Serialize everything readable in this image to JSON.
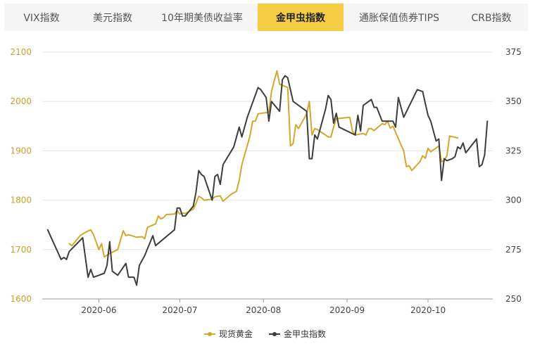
{
  "tabs": [
    {
      "label": "VIX指数",
      "active": false
    },
    {
      "label": "美元指数",
      "active": false
    },
    {
      "label": "10年期美债收益率",
      "active": false
    },
    {
      "label": "金甲虫指数",
      "active": true
    },
    {
      "label": "通胀保值债券TIPS",
      "active": false
    },
    {
      "label": "CRB指数",
      "active": false
    }
  ],
  "colors": {
    "accent": "#f5cd45",
    "gold_line": "#d4a72c",
    "bugs_line": "#3d3d3d"
  },
  "chart_data": {
    "type": "line",
    "x_ticks": [
      "2020-06",
      "2020-07",
      "2020-08",
      "2020-09",
      "2020-10"
    ],
    "y_left": {
      "ticks": [
        "1600",
        "1700",
        "1800",
        "1900",
        "2000",
        "2100"
      ],
      "range": [
        1600,
        2100
      ]
    },
    "y_right": {
      "ticks": [
        "250",
        "275",
        "300",
        "325",
        "350",
        "375"
      ],
      "range": [
        250,
        375
      ]
    },
    "grid": true,
    "legend_position": "bottom",
    "series": [
      {
        "name": "现货黄金",
        "axis": "left",
        "color": "#d4a72c",
        "points": [
          [
            "2020-05-21",
            1712
          ],
          [
            "2020-05-22",
            1708
          ],
          [
            "2020-05-25",
            1728
          ],
          [
            "2020-05-27",
            1735
          ],
          [
            "2020-05-29",
            1740
          ],
          [
            "2020-05-30",
            1730
          ],
          [
            "2020-06-01",
            1700
          ],
          [
            "2020-06-02",
            1712
          ],
          [
            "2020-06-03",
            1685
          ],
          [
            "2020-06-05",
            1692
          ],
          [
            "2020-06-08",
            1700
          ],
          [
            "2020-06-10",
            1738
          ],
          [
            "2020-06-11",
            1728
          ],
          [
            "2020-06-12",
            1730
          ],
          [
            "2020-06-15",
            1725
          ],
          [
            "2020-06-17",
            1726
          ],
          [
            "2020-06-18",
            1722
          ],
          [
            "2020-06-19",
            1745
          ],
          [
            "2020-06-22",
            1752
          ],
          [
            "2020-06-23",
            1768
          ],
          [
            "2020-06-24",
            1762
          ],
          [
            "2020-06-25",
            1765
          ],
          [
            "2020-06-26",
            1771
          ],
          [
            "2020-06-29",
            1772
          ],
          [
            "2020-06-30",
            1779
          ],
          [
            "2020-07-01",
            1772
          ],
          [
            "2020-07-02",
            1774
          ],
          [
            "2020-07-03",
            1773
          ],
          [
            "2020-07-06",
            1782
          ],
          [
            "2020-07-07",
            1793
          ],
          [
            "2020-07-08",
            1808
          ],
          [
            "2020-07-09",
            1805
          ],
          [
            "2020-07-10",
            1800
          ],
          [
            "2020-07-13",
            1802
          ],
          [
            "2020-07-14",
            1807
          ],
          [
            "2020-07-15",
            1808
          ],
          [
            "2020-07-16",
            1809
          ],
          [
            "2020-07-17",
            1798
          ],
          [
            "2020-07-20",
            1812
          ],
          [
            "2020-07-21",
            1815
          ],
          [
            "2020-07-22",
            1818
          ],
          [
            "2020-07-23",
            1840
          ],
          [
            "2020-07-24",
            1872
          ],
          [
            "2020-07-27",
            1930
          ],
          [
            "2020-07-28",
            1960
          ],
          [
            "2020-07-29",
            1960
          ],
          [
            "2020-07-30",
            1975
          ],
          [
            "2020-08-03",
            1978
          ],
          [
            "2020-08-04",
            2020
          ],
          [
            "2020-08-05",
            2042
          ],
          [
            "2020-08-06",
            2062
          ],
          [
            "2020-08-07",
            2035
          ],
          [
            "2020-08-10",
            2028
          ],
          [
            "2020-08-11",
            1910
          ],
          [
            "2020-08-12",
            1915
          ],
          [
            "2020-08-13",
            1953
          ],
          [
            "2020-08-14",
            1945
          ],
          [
            "2020-08-17",
            1975
          ],
          [
            "2020-08-18",
            2000
          ],
          [
            "2020-08-19",
            1932
          ],
          [
            "2020-08-20",
            1945
          ],
          [
            "2020-08-21",
            1943
          ],
          [
            "2020-08-24",
            1932
          ],
          [
            "2020-08-25",
            1928
          ],
          [
            "2020-08-26",
            1928
          ],
          [
            "2020-08-27",
            1948
          ],
          [
            "2020-08-28",
            1965
          ],
          [
            "2020-09-02",
            1968
          ],
          [
            "2020-09-03",
            1940
          ],
          [
            "2020-09-04",
            1932
          ],
          [
            "2020-09-07",
            1935
          ],
          [
            "2020-09-08",
            1932
          ],
          [
            "2020-09-09",
            1945
          ],
          [
            "2020-09-10",
            1945
          ],
          [
            "2020-09-11",
            1941
          ],
          [
            "2020-09-14",
            1955
          ],
          [
            "2020-09-15",
            1953
          ],
          [
            "2020-09-16",
            1960
          ],
          [
            "2020-09-17",
            1946
          ],
          [
            "2020-09-18",
            1950
          ],
          [
            "2020-09-21",
            1912
          ],
          [
            "2020-09-22",
            1900
          ],
          [
            "2020-09-23",
            1868
          ],
          [
            "2020-09-24",
            1870
          ],
          [
            "2020-09-25",
            1860
          ],
          [
            "2020-09-28",
            1878
          ],
          [
            "2020-09-29",
            1890
          ],
          [
            "2020-09-30",
            1885
          ],
          [
            "2020-10-01",
            1905
          ],
          [
            "2020-10-02",
            1898
          ],
          [
            "2020-10-05",
            1910
          ],
          [
            "2020-10-06",
            1878
          ],
          [
            "2020-10-07",
            1880
          ],
          [
            "2020-10-08",
            1890
          ],
          [
            "2020-10-09",
            1930
          ],
          [
            "2020-10-12",
            1926
          ]
        ]
      },
      {
        "name": "金甲虫指数",
        "axis": "right",
        "color": "#3d3d3d",
        "points": [
          [
            "2020-05-13",
            285
          ],
          [
            "2020-05-18",
            270
          ],
          [
            "2020-05-19",
            271
          ],
          [
            "2020-05-20",
            270
          ],
          [
            "2020-05-21",
            274
          ],
          [
            "2020-05-26",
            281
          ],
          [
            "2020-05-28",
            261
          ],
          [
            "2020-05-29",
            265
          ],
          [
            "2020-05-30",
            261
          ],
          [
            "2020-06-01",
            262
          ],
          [
            "2020-06-03",
            263
          ],
          [
            "2020-06-04",
            267
          ],
          [
            "2020-06-05",
            279
          ],
          [
            "2020-06-06",
            264
          ],
          [
            "2020-06-08",
            262
          ],
          [
            "2020-06-11",
            268
          ],
          [
            "2020-06-12",
            261
          ],
          [
            "2020-06-14",
            261
          ],
          [
            "2020-06-15",
            257
          ],
          [
            "2020-06-16",
            267
          ],
          [
            "2020-06-18",
            272
          ],
          [
            "2020-06-21",
            282
          ],
          [
            "2020-06-22",
            277
          ],
          [
            "2020-06-29",
            285
          ],
          [
            "2020-06-30",
            296
          ],
          [
            "2020-07-01",
            296
          ],
          [
            "2020-07-02",
            292
          ],
          [
            "2020-07-03",
            292
          ],
          [
            "2020-07-06",
            297
          ],
          [
            "2020-07-07",
            304
          ],
          [
            "2020-07-08",
            315
          ],
          [
            "2020-07-09",
            313
          ],
          [
            "2020-07-10",
            312
          ],
          [
            "2020-07-13",
            300
          ],
          [
            "2020-07-14",
            312
          ],
          [
            "2020-07-15",
            313
          ],
          [
            "2020-07-16",
            308
          ],
          [
            "2020-07-17",
            318
          ],
          [
            "2020-07-21",
            327
          ],
          [
            "2020-07-23",
            337
          ],
          [
            "2020-07-24",
            332
          ],
          [
            "2020-07-26",
            342
          ],
          [
            "2020-07-30",
            357
          ],
          [
            "2020-07-31",
            356
          ],
          [
            "2020-08-02",
            352
          ],
          [
            "2020-08-03",
            340
          ],
          [
            "2020-08-04",
            350
          ],
          [
            "2020-08-07",
            345
          ],
          [
            "2020-08-08",
            361
          ],
          [
            "2020-08-09",
            363
          ],
          [
            "2020-08-10",
            362
          ],
          [
            "2020-08-12",
            350
          ],
          [
            "2020-08-17",
            345
          ],
          [
            "2020-08-18",
            321
          ],
          [
            "2020-08-19",
            321
          ],
          [
            "2020-08-20",
            333
          ],
          [
            "2020-08-21",
            331
          ],
          [
            "2020-08-24",
            346
          ],
          [
            "2020-08-25",
            353
          ],
          [
            "2020-08-26",
            351
          ],
          [
            "2020-08-27",
            339
          ],
          [
            "2020-08-28",
            344
          ],
          [
            "2020-08-29",
            337
          ],
          [
            "2020-09-04",
            333
          ],
          [
            "2020-09-05",
            343
          ],
          [
            "2020-09-06",
            335
          ],
          [
            "2020-09-07",
            348
          ],
          [
            "2020-09-10",
            351
          ],
          [
            "2020-09-11",
            347
          ],
          [
            "2020-09-12",
            347
          ],
          [
            "2020-09-14",
            340
          ],
          [
            "2020-09-18",
            340
          ],
          [
            "2020-09-19",
            337
          ],
          [
            "2020-09-20",
            352
          ],
          [
            "2020-09-22",
            342
          ],
          [
            "2020-09-27",
            356
          ],
          [
            "2020-09-29",
            355
          ],
          [
            "2020-10-01",
            343
          ],
          [
            "2020-10-02",
            340
          ],
          [
            "2020-10-04",
            330
          ],
          [
            "2020-10-05",
            331
          ],
          [
            "2020-10-06",
            310
          ],
          [
            "2020-10-07",
            321
          ],
          [
            "2020-10-08",
            320
          ],
          [
            "2020-10-10",
            321
          ],
          [
            "2020-10-11",
            322
          ],
          [
            "2020-10-12",
            327
          ],
          [
            "2020-10-13",
            326
          ],
          [
            "2020-10-14",
            329
          ],
          [
            "2020-10-15",
            324
          ],
          [
            "2020-10-19",
            331
          ],
          [
            "2020-10-20",
            317
          ],
          [
            "2020-10-21",
            318
          ],
          [
            "2020-10-22",
            323
          ],
          [
            "2020-10-23",
            340
          ]
        ]
      }
    ]
  }
}
